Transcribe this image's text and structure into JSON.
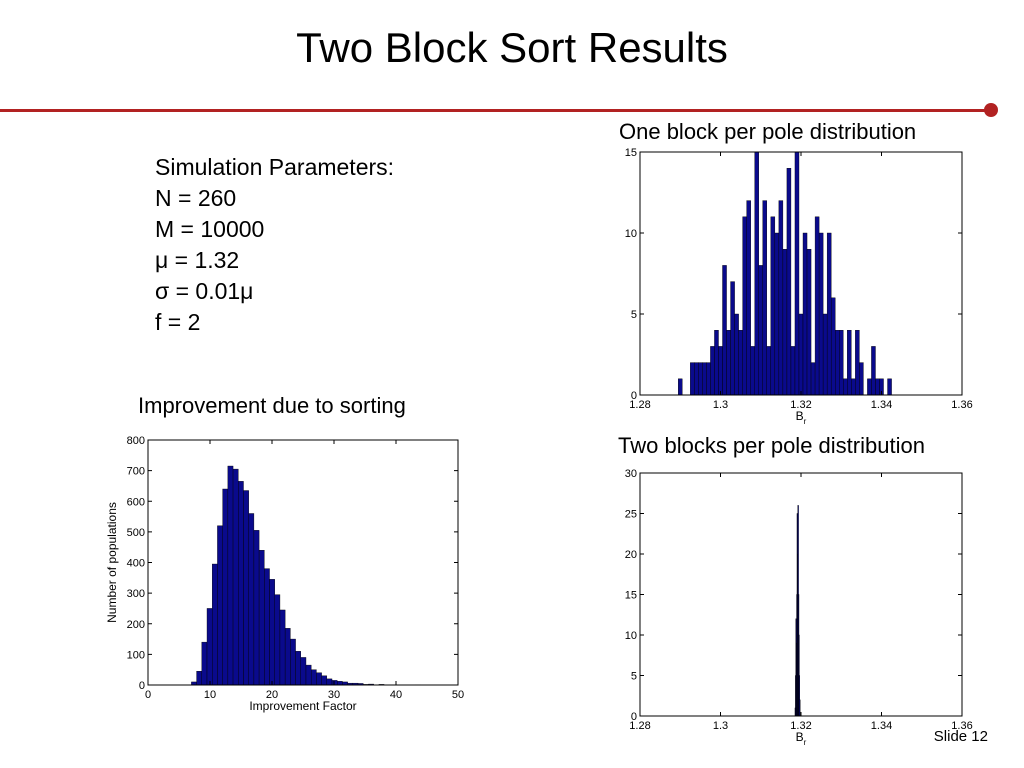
{
  "slide": {
    "title": "Two Block Sort Results",
    "number_label": "Slide 12",
    "accent_color": "#b22222"
  },
  "params": {
    "heading": "Simulation Parameters:",
    "lines": [
      "N = 260",
      "M = 10000",
      "μ = 1.32",
      "σ = 0.01μ",
      "f = 2"
    ]
  },
  "headings": {
    "one_block": "One block per pole distribution",
    "improvement": "Improvement due to sorting",
    "two_block": "Two blocks per pole distribution"
  },
  "chart_data": [
    {
      "id": "one-block",
      "type": "bar",
      "bar_color": "#0a0a8c",
      "xlabel": "B",
      "xlabel_sub": "r",
      "ylabel": "",
      "xlim": [
        1.28,
        1.36
      ],
      "ylim": [
        0,
        15
      ],
      "xticks": [
        "1.28",
        "1.3",
        "1.32",
        "1.34",
        "1.36"
      ],
      "yticks": [
        "0",
        "5",
        "10",
        "15"
      ],
      "bin_start": 1.2895,
      "bin_width": 0.001,
      "values": [
        1,
        0,
        0,
        2,
        2,
        2,
        2,
        2,
        3,
        4,
        3,
        8,
        4,
        7,
        5,
        4,
        11,
        12,
        3,
        15,
        8,
        12,
        3,
        11,
        10,
        12,
        9,
        14,
        3,
        15,
        5,
        10,
        9,
        2,
        11,
        10,
        5,
        10,
        6,
        4,
        4,
        1,
        4,
        1,
        4,
        2,
        0,
        1,
        3,
        1,
        1,
        0,
        1
      ]
    },
    {
      "id": "improvement",
      "type": "bar",
      "bar_color": "#0a0a8c",
      "xlabel": "Improvement Factor",
      "ylabel": "Number of populations",
      "xlim": [
        0,
        50
      ],
      "ylim": [
        0,
        800
      ],
      "xticks": [
        "0",
        "10",
        "20",
        "30",
        "40",
        "50"
      ],
      "yticks": [
        "0",
        "100",
        "200",
        "300",
        "400",
        "500",
        "600",
        "700",
        "800"
      ],
      "bin_start": 7.0,
      "bin_width": 0.84,
      "values": [
        10,
        45,
        140,
        250,
        395,
        520,
        640,
        715,
        705,
        665,
        635,
        560,
        505,
        440,
        380,
        345,
        295,
        245,
        185,
        150,
        110,
        90,
        65,
        50,
        40,
        30,
        20,
        15,
        12,
        10,
        6,
        6,
        5,
        2,
        3,
        1,
        2,
        1,
        1,
        0,
        0,
        0,
        0,
        1,
        0
      ]
    },
    {
      "id": "two-block",
      "type": "bar",
      "bar_color": "#0a0a8c",
      "xlabel": "B",
      "xlabel_sub": "r",
      "ylabel": "",
      "xlim": [
        1.28,
        1.36
      ],
      "ylim": [
        0,
        30
      ],
      "xticks": [
        "1.28",
        "1.3",
        "1.32",
        "1.34",
        "1.36"
      ],
      "yticks": [
        "0",
        "5",
        "10",
        "15",
        "20",
        "25",
        "30"
      ],
      "bin_start": 1.3185,
      "bin_width": 0.0001,
      "values": [
        1,
        5,
        12,
        9,
        15,
        25,
        20,
        26,
        15,
        10,
        5,
        2
      ]
    }
  ]
}
